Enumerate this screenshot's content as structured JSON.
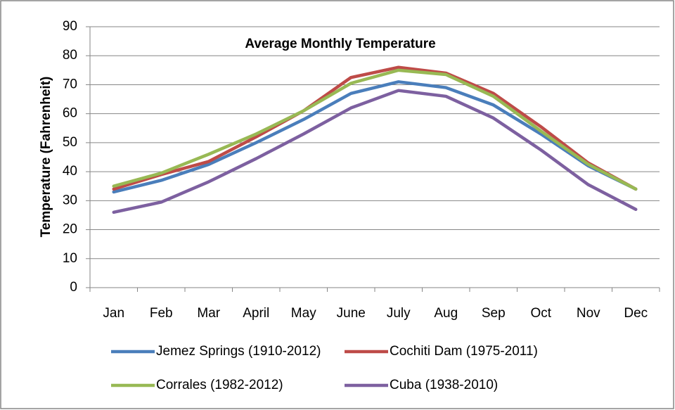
{
  "chart_data": {
    "type": "line",
    "title": "Average Monthly Temperature",
    "y_label": "Temperature (Fahrenheit)",
    "categories": [
      "Jan",
      "Feb",
      "Mar",
      "April",
      "May",
      "June",
      "July",
      "Aug",
      "Sep",
      "Oct",
      "Nov",
      "Dec"
    ],
    "series": [
      {
        "name": "Jemez Springs (1910-2012)",
        "color": "#4a7ebb",
        "values": [
          33,
          37,
          42.5,
          50,
          58,
          67,
          71,
          69,
          63,
          53,
          42,
          34
        ]
      },
      {
        "name": "Cochiti Dam (1975-2011)",
        "color": "#be4b48",
        "values": [
          34,
          39,
          43.5,
          52,
          61,
          72.5,
          76,
          74,
          67,
          55.5,
          43,
          34
        ]
      },
      {
        "name": "Corrales (1982-2012)",
        "color": "#98b954",
        "values": [
          35,
          39.5,
          46,
          53,
          61,
          70.5,
          75,
          73.5,
          66,
          54,
          42.5,
          34
        ]
      },
      {
        "name": "Cuba (1938-2010)",
        "color": "#7d60a0",
        "values": [
          26,
          29.5,
          36.5,
          44.5,
          53,
          62,
          68,
          66,
          58.5,
          47.5,
          35.5,
          27
        ]
      }
    ],
    "ylim": [
      0,
      90
    ],
    "yticks": [
      0,
      10,
      20,
      30,
      40,
      50,
      60,
      70,
      80,
      90
    ],
    "grid": true,
    "legend": "bottom"
  }
}
